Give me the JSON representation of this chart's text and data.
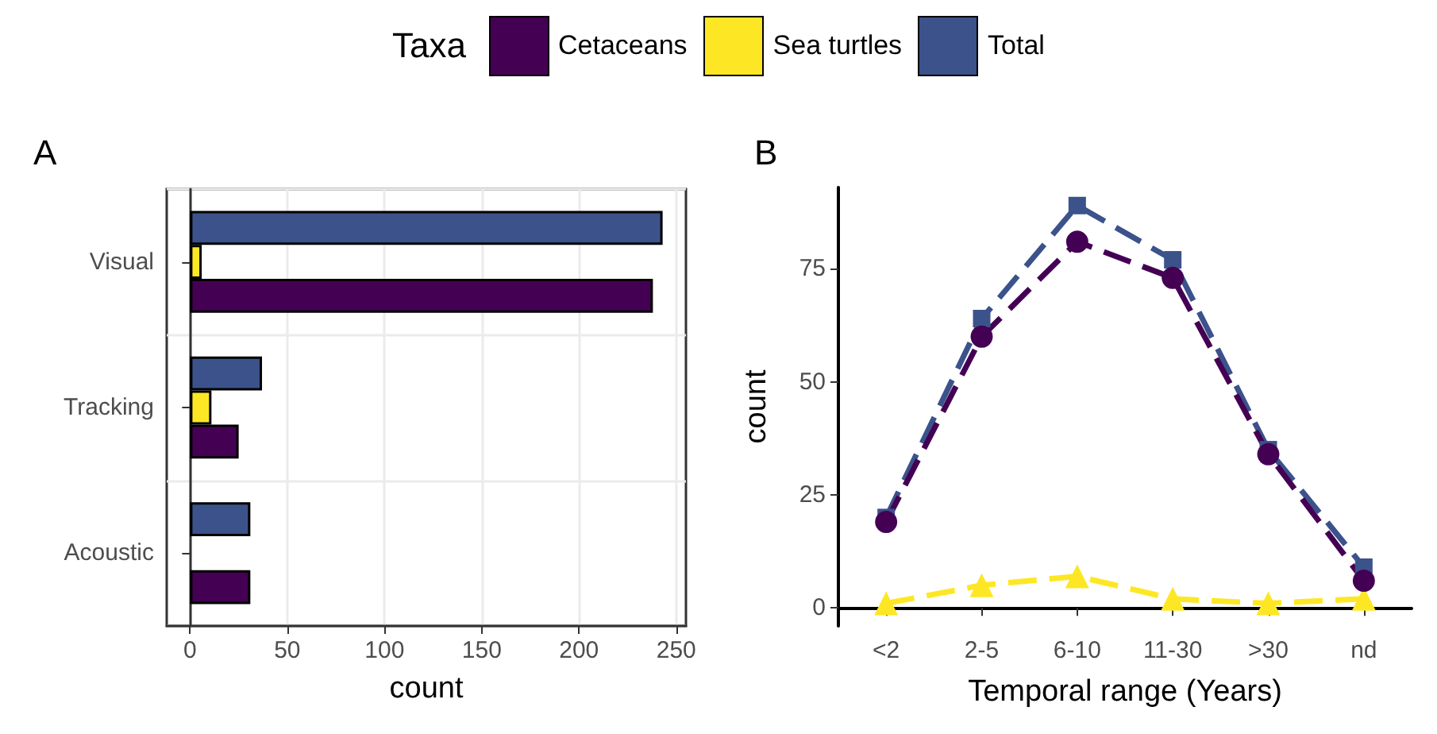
{
  "chart_data": [
    {
      "type": "bar",
      "orientation": "horizontal",
      "title": "A",
      "xlabel": "count",
      "legend_title": "Taxa",
      "legend": "top",
      "grid": true,
      "categories": [
        "Visual",
        "Tracking",
        "Acoustic"
      ],
      "xlim": [
        -12,
        255
      ],
      "xticks": [
        0,
        50,
        100,
        150,
        200,
        250
      ],
      "series": [
        {
          "name": "Cetaceans",
          "color": "#440154",
          "values": [
            238,
            25,
            31
          ]
        },
        {
          "name": "Sea turtles",
          "color": "#fde725",
          "values": [
            6,
            11,
            null
          ]
        },
        {
          "name": "Total",
          "color": "#3b528b",
          "values": [
            243,
            37,
            31
          ]
        }
      ]
    },
    {
      "type": "line",
      "title": "B",
      "xlabel": "Temporal range (Years)",
      "ylabel": "count",
      "grid": false,
      "line_style": "dashed",
      "categories": [
        "<2",
        "2-5",
        "6-10",
        "11-30",
        ">30",
        "nd"
      ],
      "ylim": [
        -4,
        93
      ],
      "yticks": [
        0,
        25,
        50,
        75
      ],
      "series": [
        {
          "color": "#440154",
          "marker": "circle",
          "values": [
            19,
            60,
            81,
            73,
            34,
            6
          ]
        },
        {
          "color": "#fde725",
          "marker": "triangle",
          "values": [
            1,
            5,
            7,
            2,
            1,
            2
          ]
        },
        {
          "color": "#3b528b",
          "marker": "square",
          "values": [
            20,
            64,
            89,
            77,
            35,
            9
          ]
        }
      ]
    }
  ]
}
